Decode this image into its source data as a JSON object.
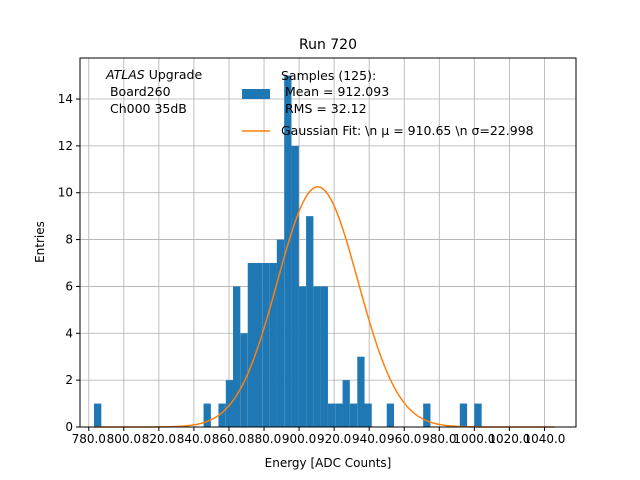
{
  "chart_data": {
    "type": "histogram",
    "title": "Run 720",
    "xlabel": "Energy [ADC Counts]",
    "ylabel": "Entries",
    "xlim": [
      775,
      1058
    ],
    "ylim": [
      0,
      15.75
    ],
    "grid": true,
    "xticks": [
      780.0,
      800.0,
      820.0,
      840.0,
      860.0,
      880.0,
      900.0,
      920.0,
      940.0,
      960.0,
      980.0,
      1000.0,
      1020.0,
      1040.0
    ],
    "xtick_labels": [
      "780.0",
      "800.0",
      "820.0",
      "840.0",
      "860.0",
      "880.0",
      "900.0",
      "920.0",
      "940.0",
      "960.0",
      "980.0",
      "1000.0",
      "1020.0",
      "1040.0"
    ],
    "yticks": [
      0,
      2,
      4,
      6,
      8,
      10,
      12,
      14
    ],
    "ytick_labels": [
      "0",
      "2",
      "4",
      "6",
      "8",
      "10",
      "12",
      "14"
    ],
    "bin_width": 4.167,
    "bins": [
      {
        "x": 783.0,
        "count": 1
      },
      {
        "x": 845.5,
        "count": 1
      },
      {
        "x": 854.0,
        "count": 1
      },
      {
        "x": 858.2,
        "count": 2
      },
      {
        "x": 862.3,
        "count": 6
      },
      {
        "x": 866.5,
        "count": 4
      },
      {
        "x": 870.7,
        "count": 7
      },
      {
        "x": 874.8,
        "count": 7
      },
      {
        "x": 879.0,
        "count": 7
      },
      {
        "x": 883.2,
        "count": 7
      },
      {
        "x": 887.3,
        "count": 8
      },
      {
        "x": 891.5,
        "count": 15
      },
      {
        "x": 895.7,
        "count": 12
      },
      {
        "x": 899.8,
        "count": 6
      },
      {
        "x": 904.0,
        "count": 9
      },
      {
        "x": 908.2,
        "count": 6
      },
      {
        "x": 912.3,
        "count": 6
      },
      {
        "x": 916.5,
        "count": 1
      },
      {
        "x": 920.7,
        "count": 1
      },
      {
        "x": 924.8,
        "count": 2
      },
      {
        "x": 929.0,
        "count": 1
      },
      {
        "x": 933.2,
        "count": 3
      },
      {
        "x": 937.3,
        "count": 1
      },
      {
        "x": 950.0,
        "count": 1
      },
      {
        "x": 970.8,
        "count": 1
      },
      {
        "x": 991.7,
        "count": 1
      },
      {
        "x": 1000.0,
        "count": 1
      }
    ],
    "fit": {
      "type": "gaussian",
      "mu": 910.65,
      "sigma": 22.998,
      "amplitude": 10.25,
      "x_range": [
        783,
        1046
      ],
      "color": "#ff7f0e"
    },
    "bar_color": "#1f77b4",
    "legend": {
      "position": "top-right",
      "samples_label": "Samples (125):",
      "mean_label": " Mean = 912.093",
      "rms_label": " RMS = 32.12",
      "fit_label": "Gaussian Fit: \\n μ = 910.65 \\n σ=22.998"
    },
    "annotation": {
      "atlas": "ATLAS",
      "upgrade": " Upgrade",
      "board": " Board260",
      "channel": " Ch000 35dB"
    }
  }
}
